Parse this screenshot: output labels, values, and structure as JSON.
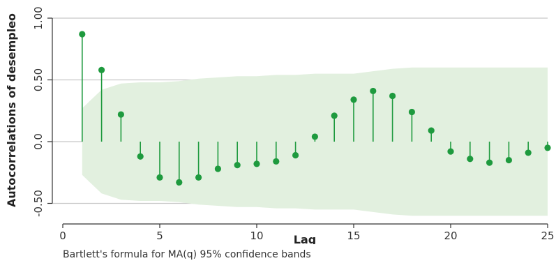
{
  "chart_data": {
    "type": "stem",
    "title": "",
    "xlabel": "Lag",
    "ylabel": "Autocorrelations of desempleo",
    "xlim": [
      0,
      25
    ],
    "ylim": [
      -0.6,
      1.05
    ],
    "xticks": [
      0,
      5,
      10,
      15,
      20,
      25
    ],
    "yticks": [
      -0.5,
      0.0,
      0.5,
      1.0
    ],
    "ytick_labels": [
      "-0.50",
      "0.0",
      "0.50",
      "1.00"
    ],
    "grid": true,
    "lags": [
      1,
      2,
      3,
      4,
      5,
      6,
      7,
      8,
      9,
      10,
      11,
      12,
      13,
      14,
      15,
      16,
      17,
      18,
      19,
      20,
      21,
      22,
      23,
      24,
      25
    ],
    "acf": [
      0.87,
      0.58,
      0.22,
      -0.12,
      -0.29,
      -0.33,
      -0.29,
      -0.22,
      -0.19,
      -0.18,
      -0.16,
      -0.11,
      0.04,
      0.21,
      0.34,
      0.41,
      0.37,
      0.24,
      0.09,
      -0.08,
      -0.14,
      -0.17,
      -0.15,
      -0.09,
      -0.05
    ],
    "confidence_band": {
      "lags": [
        1,
        2,
        3,
        4,
        5,
        6,
        7,
        8,
        9,
        10,
        11,
        12,
        13,
        14,
        15,
        16,
        17,
        18,
        19,
        20,
        21,
        22,
        23,
        24,
        25
      ],
      "upper": [
        0.27,
        0.42,
        0.47,
        0.48,
        0.48,
        0.49,
        0.51,
        0.52,
        0.53,
        0.53,
        0.54,
        0.54,
        0.55,
        0.55,
        0.55,
        0.57,
        0.59,
        0.6,
        0.6,
        0.6,
        0.6,
        0.6,
        0.6,
        0.6,
        0.6
      ]
    },
    "colors": {
      "stem": "#1e9a3e",
      "band": "#e2f0df",
      "grid": "#c8c8c8",
      "axis": "#333333"
    }
  },
  "note": "Bartlett's formula for MA(q) 95% confidence bands"
}
